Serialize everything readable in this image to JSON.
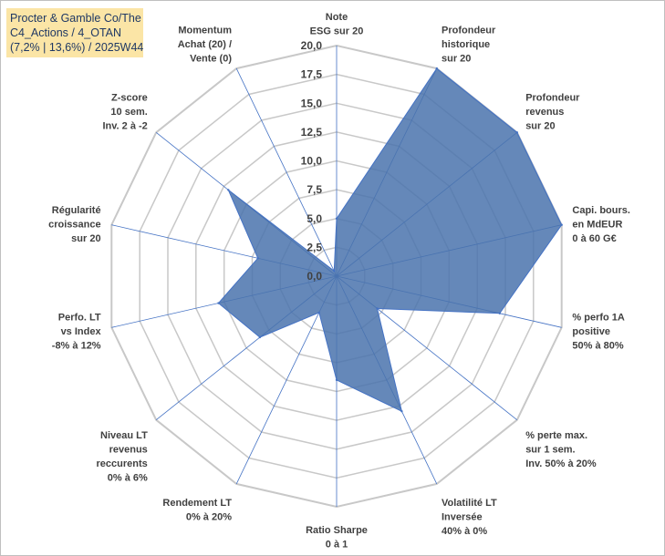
{
  "title_box": {
    "line1": "Procter & Gamble Co/The",
    "line2": "C4_Actions / 4_OTAN",
    "line3": "(7,2% | 13,6%) / 2025W44"
  },
  "chart_data": {
    "type": "radar",
    "rmin": 0,
    "rmax": 20,
    "tick_labels": [
      "0,0",
      "2,5",
      "5,0",
      "7,5",
      "10,0",
      "12,5",
      "15,0",
      "17,5",
      "20,0"
    ],
    "axes": [
      {
        "label": [
          "Note",
          "ESG sur 20"
        ],
        "value": 5.0
      },
      {
        "label": [
          "Profondeur",
          "historique",
          "sur 20"
        ],
        "value": 20.0
      },
      {
        "label": [
          "Profondeur",
          "revenus",
          "sur 20"
        ],
        "value": 20.0
      },
      {
        "label": [
          "Capi. bours.",
          "en MdEUR",
          "0 à 60 G€"
        ],
        "value": 20.0
      },
      {
        "label": [
          "% perfo 1A",
          "positive",
          "50% à 80%"
        ],
        "value": 14.5
      },
      {
        "label": [
          "% perte max.",
          "sur 1 sem.",
          "Inv. 50% à 20%"
        ],
        "value": 4.5
      },
      {
        "label": [
          "Volatilité LT",
          "Inversée",
          "40% à 0%"
        ],
        "value": 13.0
      },
      {
        "label": [
          "Ratio Sharpe",
          "0 à 1"
        ],
        "value": 9.0
      },
      {
        "label": [
          "Rendement LT",
          "0% à 20%"
        ],
        "value": 3.5
      },
      {
        "label": [
          "Niveau LT",
          "revenus",
          "reccurents",
          "0% à 6%"
        ],
        "value": 8.5
      },
      {
        "label": [
          "Perfo. LT",
          "vs Index",
          "-8% à 12%"
        ],
        "value": 10.5
      },
      {
        "label": [
          "Régularité",
          "croissance",
          "sur 20"
        ],
        "value": 7.0
      },
      {
        "label": [
          "Z-score",
          "10 sem.",
          "Inv. 2 à -2"
        ],
        "value": 12.0
      },
      {
        "label": [
          "Momentum",
          "Achat (20) /",
          "Vente (0)"
        ],
        "value": 0.5
      }
    ],
    "colors": {
      "fill": "#4a73ad",
      "stroke": "#4472c4",
      "grid": "#c8c8c8",
      "spoke": "#4472c4"
    }
  }
}
